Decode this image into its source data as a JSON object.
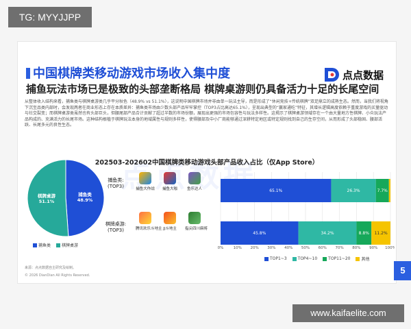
{
  "tag": "TG: MYYJJPP",
  "site": "www.kaifaelite.com",
  "page_number": "5",
  "slide": {
    "title": "中国棋牌类移动游戏市场收入集中度",
    "subtitle": "捕鱼玩法市场已是极致的头部垄断格局  棋牌桌游则仍具备活力十足的长尾空间",
    "logo_text": "点点数据",
    "watermark": "点点数据",
    "description": "从整体收入结构来看，捕鱼类与棋牌桌游类几乎平分秋色（48.9% vs 51.1%），这说明中国棋牌市场并非由单一玩法主导，而是形成了“休闲竞技+传统棋牌”双足鼎立的成熟生态。然而，当我们将视角下沉至品类内部时，会发现两者在商业形态上存在本质差异：捕鱼类市场由少数头部产品牢牢掌控（TOP3占比高达65.1%），呈现出典型的“赢家通吃”特征，其增长逻辑高度依赖于重度游戏的买量驱动与社交裂变；而棋牌桌游类虽然也有头部巨头，但腰尾部产品合计贡献了超过半数的市场份额，展现出更强的市场包容性与玩法多样性。这揭示了棋牌桌游领域存在一个由大量地方性棋牌、小众玩法产品构成的、充满活力的长尾市场。这种结构根植于棋牌玩法本身的地域属性与规则多样性，使得腰部及中小厂商能够通过深耕特定地区或特定规则找到自己的生存空间，从而形成了头部稳固、腰部活跃、长尾多元的良性生态。",
    "source": "来源：点点数据自主研究及绘制。",
    "copyright": "© 2026 DianDian All Rights Reserved."
  },
  "pie_legend": [
    "捕鱼类",
    "棋牌桌游"
  ],
  "bar_legend": [
    "TOP1~3",
    "TOP4~10",
    "TOP11~20",
    "其他"
  ],
  "categories_display": [
    {
      "name": "捕鱼类:",
      "sub": "(TOP3)",
      "apps": [
        "捕鱼大作战",
        "捕鱼大咖",
        "鱼乐达人"
      ]
    },
    {
      "name": "棋牌桌游:",
      "sub": "(TOP3)",
      "apps": [
        "腾讯欢乐斗地主",
        "JJ斗地主",
        "指尖四川麻将"
      ]
    }
  ],
  "colors": {
    "accent": "#1f4fd6",
    "pie_fish": "#1f4fd6",
    "pie_board": "#26a99a",
    "top1_3": "#1f4fd6",
    "top4_10": "#2fb8a4",
    "top11_20": "#16a85a",
    "other": "#f5c400"
  },
  "chart_data": [
    {
      "type": "pie",
      "title": "",
      "labels": [
        "棋牌桌游",
        "捕鱼类"
      ],
      "values": [
        51.1,
        48.9
      ],
      "value_labels": [
        "51.1%",
        "48.9%"
      ],
      "slice_labels": [
        "棋牌桌游",
        "捕鱼类"
      ],
      "legend": "bottom"
    },
    {
      "type": "bar",
      "orientation": "horizontal",
      "stacked": true,
      "title": "202503-202602中国棋牌类移动游戏头部产品收入占比（仅App Store）",
      "categories": [
        "捕鱼类",
        "棋牌桌游"
      ],
      "series": [
        {
          "name": "TOP1~3",
          "values": [
            65.1,
            45.8
          ]
        },
        {
          "name": "TOP4~10",
          "values": [
            26.3,
            34.2
          ]
        },
        {
          "name": "TOP11~20",
          "values": [
            7.7,
            8.8
          ]
        },
        {
          "name": "其他",
          "values": [
            0.9,
            11.2
          ]
        }
      ],
      "value_labels": [
        [
          "65.1%",
          "26.3%",
          "7.7%",
          ""
        ],
        [
          "45.8%",
          "34.2%",
          "8.8%",
          "11.2%"
        ]
      ],
      "xlim": [
        0,
        100
      ],
      "xticks": [
        "0%",
        "10%",
        "20%",
        "30%",
        "40%",
        "50%",
        "60%",
        "70%",
        "80%",
        "90%",
        "100%"
      ],
      "grid": true,
      "legend": "bottom"
    }
  ]
}
